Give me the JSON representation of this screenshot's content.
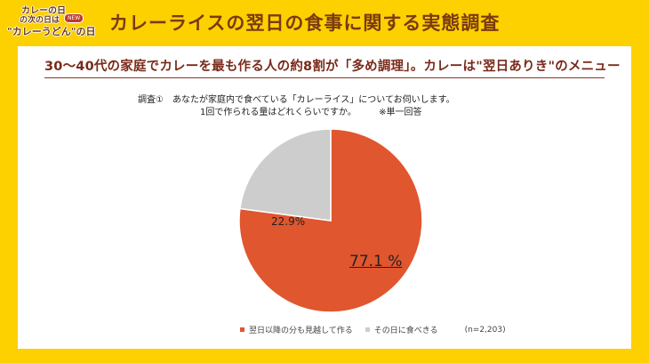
{
  "logo": {
    "line1": "カレーの日",
    "line2": "の次の日は",
    "line3": "\"カレーうどん\"の日",
    "badge": "NEW"
  },
  "header": {
    "title": "カレーライスの翌日の食事に関する実態調査"
  },
  "card": {
    "subtitle": "30～40代の家庭でカレーを最も作る人の約8割が「多め調理」。カレーは\"翌日ありき\"のメニュー",
    "question": {
      "line1": "調査①　あなたが家庭内で食べている「カレーライス」についてお伺いします。",
      "line2": "1回で作られる量はどれくらいですか。",
      "note": "※単一回答"
    },
    "legend": {
      "items": [
        {
          "label": "翌日以降の分も見越して作る",
          "color": "#E0562E"
        },
        {
          "label": "その日に食べきる",
          "color": "#CDCDCD"
        }
      ],
      "n": "(n=2,203)"
    }
  },
  "chart_data": {
    "type": "pie",
    "title": "1回で作られる量はどれくらいですか。",
    "categories": [
      "翌日以降の分も見越して作る",
      "その日に食べきる"
    ],
    "values": [
      77.1,
      22.9
    ],
    "labels": [
      "77.1 %",
      "22.9%"
    ],
    "colors": [
      "#E0562E",
      "#CDCDCD"
    ],
    "sample_size": "n=2,203",
    "legend_position": "bottom",
    "start_angle": "12 o'clock, clockwise"
  }
}
